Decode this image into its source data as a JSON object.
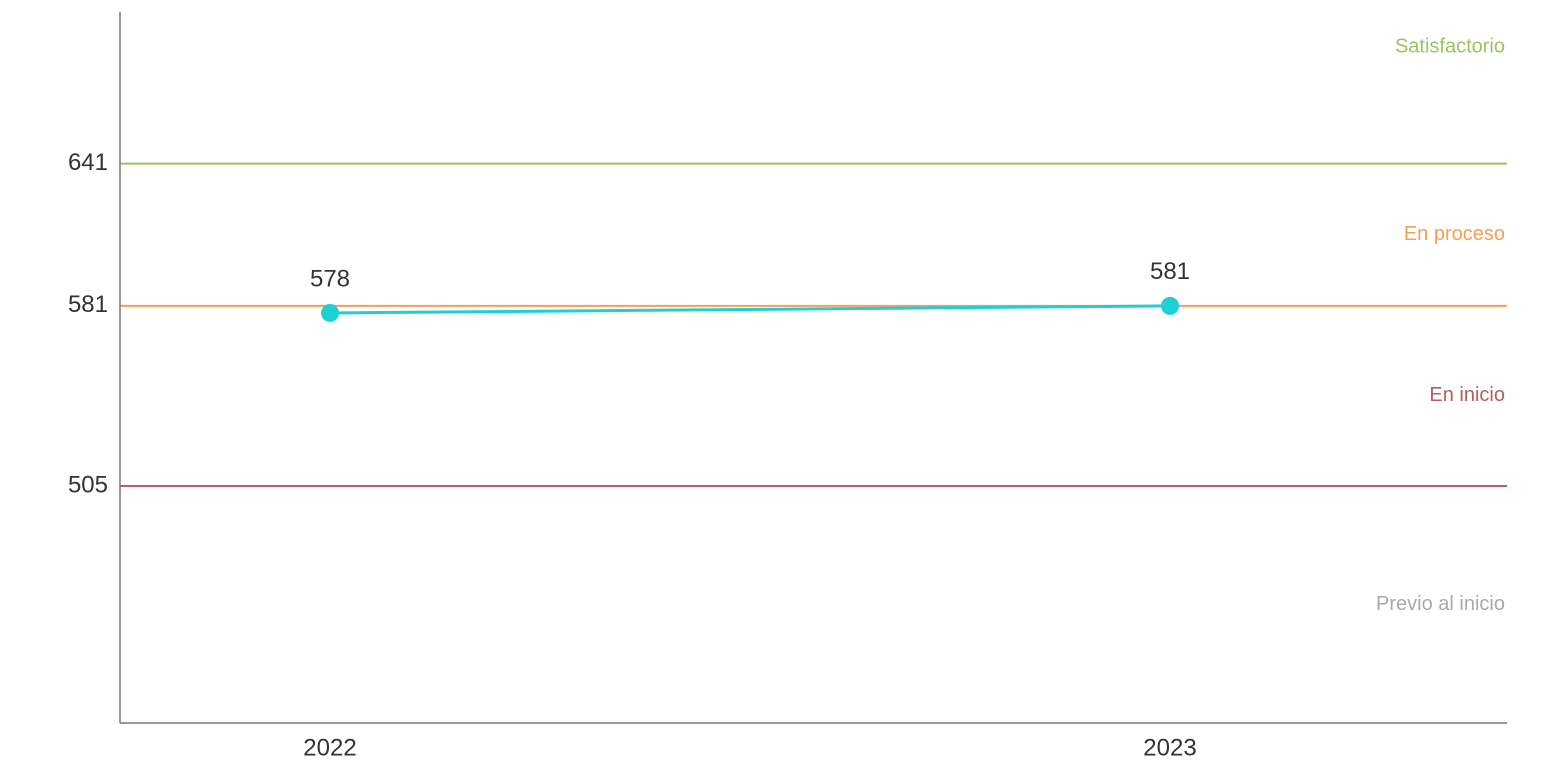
{
  "chart_data": {
    "type": "line",
    "categories": [
      "2022",
      "2023"
    ],
    "values": [
      578,
      581
    ],
    "color": "#1ecfd3",
    "ylim": [
      405,
      705
    ],
    "yticks": [
      505,
      581,
      641
    ],
    "bands": [
      {
        "label": "Previo al inicio",
        "color": "#a9a9a9"
      },
      {
        "label": "En inicio",
        "color": "#b85c5c"
      },
      {
        "label": "En proceso",
        "color": "#f0a05a"
      },
      {
        "label": "Satisfactorio",
        "color": "#9cc463"
      }
    ]
  }
}
